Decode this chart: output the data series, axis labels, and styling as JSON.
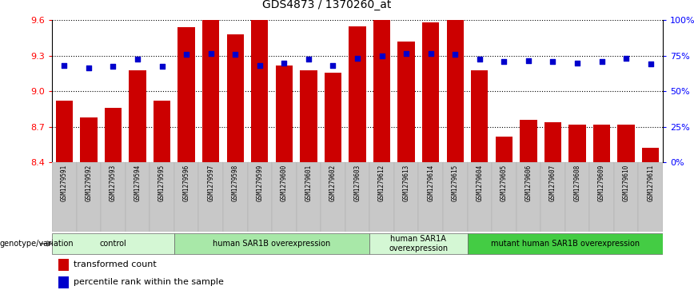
{
  "title": "GDS4873 / 1370260_at",
  "samples": [
    "GSM1279591",
    "GSM1279592",
    "GSM1279593",
    "GSM1279594",
    "GSM1279595",
    "GSM1279596",
    "GSM1279597",
    "GSM1279598",
    "GSM1279599",
    "GSM1279600",
    "GSM1279601",
    "GSM1279602",
    "GSM1279603",
    "GSM1279612",
    "GSM1279613",
    "GSM1279614",
    "GSM1279615",
    "GSM1279604",
    "GSM1279605",
    "GSM1279606",
    "GSM1279607",
    "GSM1279608",
    "GSM1279609",
    "GSM1279610",
    "GSM1279611"
  ],
  "bar_values": [
    8.92,
    8.78,
    8.86,
    9.18,
    8.92,
    9.54,
    9.6,
    9.48,
    9.6,
    9.22,
    9.18,
    9.16,
    9.55,
    9.6,
    9.42,
    9.58,
    9.6,
    9.18,
    8.62,
    8.76,
    8.74,
    8.72,
    8.72,
    8.72,
    8.52
  ],
  "percentile_values": [
    9.22,
    9.2,
    9.21,
    9.27,
    9.21,
    9.31,
    9.32,
    9.31,
    9.22,
    9.24,
    9.27,
    9.22,
    9.28,
    9.3,
    9.32,
    9.32,
    9.31,
    9.27,
    9.25,
    9.26,
    9.25,
    9.24,
    9.25,
    9.28,
    9.23
  ],
  "ylim_left": [
    8.4,
    9.6
  ],
  "yticks_left": [
    8.4,
    8.7,
    9.0,
    9.3,
    9.6
  ],
  "yticks_right": [
    0,
    25,
    50,
    75,
    100
  ],
  "bar_color": "#cc0000",
  "dot_color": "#0000cc",
  "groups": [
    {
      "label": "control",
      "start": 0,
      "end": 5,
      "color": "#d4f7d4"
    },
    {
      "label": "human SAR1B overexpression",
      "start": 5,
      "end": 13,
      "color": "#a8e8a8"
    },
    {
      "label": "human SAR1A\noverexpression",
      "start": 13,
      "end": 17,
      "color": "#d4f7d4"
    },
    {
      "label": "mutant human SAR1B overexpression",
      "start": 17,
      "end": 25,
      "color": "#44cc44"
    }
  ],
  "legend_label_bar": "transformed count",
  "legend_label_dot": "percentile rank within the sample",
  "genotype_label": "genotype/variation",
  "tick_area_color": "#c8c8c8"
}
